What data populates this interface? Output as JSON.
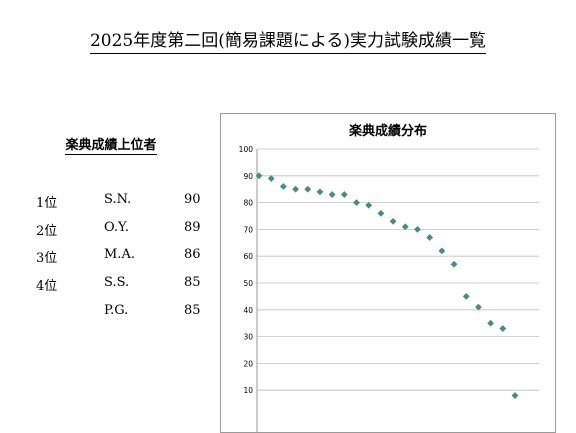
{
  "document": {
    "title": "2025年度第二回(簡易課題による)実力試験成績一覧"
  },
  "ranking": {
    "heading": "楽典成績上位者",
    "rows": [
      {
        "position": "1位",
        "name": "S.N.",
        "score": "90"
      },
      {
        "position": "2位",
        "name": "O.Y.",
        "score": "89"
      },
      {
        "position": "3位",
        "name": "M.A.",
        "score": "86"
      },
      {
        "position": "4位",
        "name": "S.S.",
        "score": "85"
      },
      {
        "position": "",
        "name": "P.G.",
        "score": "85"
      }
    ]
  },
  "chart_data": {
    "type": "scatter",
    "title": "楽典成績分布",
    "xlabel": "",
    "ylabel": "",
    "y_ticks": [
      "10",
      "20",
      "30",
      "40",
      "50",
      "60",
      "70",
      "80",
      "90",
      "100"
    ],
    "ylim": [
      0,
      100
    ],
    "grid": true,
    "legend": "none",
    "marker_color": "#4a8a80",
    "gridline_color": "#c0c0c0",
    "x": [
      1,
      2,
      3,
      4,
      5,
      6,
      7,
      8,
      9,
      10,
      11,
      12,
      13,
      14,
      15,
      16,
      17,
      18,
      19,
      20,
      21,
      22
    ],
    "values": [
      90,
      89,
      86,
      85,
      85,
      84,
      83,
      83,
      80,
      79,
      76,
      73,
      71,
      70,
      67,
      62,
      57,
      45,
      41,
      35,
      33,
      8
    ]
  }
}
